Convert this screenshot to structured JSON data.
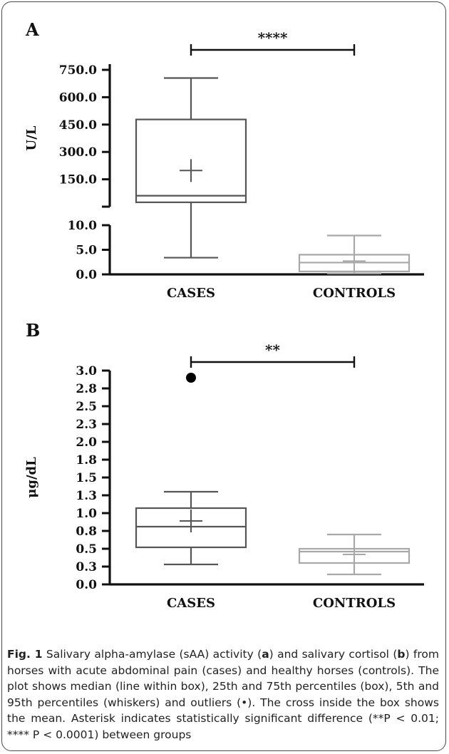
{
  "chart_data": [
    {
      "type": "box",
      "panel_label": "A",
      "ylabel": "U/L",
      "categories": [
        "CASES",
        "CONTROLS"
      ],
      "colors": [
        "#555555",
        "#a8a8a8"
      ],
      "y_axis_broken": true,
      "lower_segment": {
        "ylim": [
          0,
          10
        ],
        "ticks": [
          "0.0",
          "5.0",
          "10.0"
        ]
      },
      "upper_segment": {
        "ylim": [
          0,
          750
        ],
        "ticks": [
          "150.0",
          "300.0",
          "450.0",
          "600.0",
          "750.0"
        ]
      },
      "boxes": [
        {
          "name": "CASES",
          "p5": 3.4,
          "q1": 24,
          "median": 60,
          "mean": 198,
          "q3": 478,
          "p95": 705,
          "outliers": []
        },
        {
          "name": "CONTROLS",
          "p5": 0.2,
          "q1": 0.6,
          "median": 2.4,
          "mean": 2.7,
          "q3": 4.0,
          "p95": 7.9,
          "outliers": []
        }
      ],
      "significance": {
        "text": "****",
        "between": [
          "CASES",
          "CONTROLS"
        ]
      },
      "grid": false
    },
    {
      "type": "box",
      "panel_label": "B",
      "ylabel": "μg/dL",
      "categories": [
        "CASES",
        "CONTROLS"
      ],
      "colors": [
        "#555555",
        "#a8a8a8"
      ],
      "ylim": [
        0,
        3.0
      ],
      "ticks": [
        {
          "v": 0.0,
          "t": "0.0"
        },
        {
          "v": 0.25,
          "t": "0.3"
        },
        {
          "v": 0.5,
          "t": "0.5"
        },
        {
          "v": 0.75,
          "t": "0.8"
        },
        {
          "v": 1.0,
          "t": "1.0"
        },
        {
          "v": 1.25,
          "t": "1.3"
        },
        {
          "v": 1.5,
          "t": "1.5"
        },
        {
          "v": 1.75,
          "t": "1.8"
        },
        {
          "v": 2.0,
          "t": "2.0"
        },
        {
          "v": 2.25,
          "t": "2.3"
        },
        {
          "v": 2.5,
          "t": "2.5"
        },
        {
          "v": 2.75,
          "t": "2.8"
        },
        {
          "v": 3.0,
          "t": "3.0"
        }
      ],
      "boxes": [
        {
          "name": "CASES",
          "p5": 0.28,
          "q1": 0.52,
          "median": 0.81,
          "mean": 0.89,
          "q3": 1.07,
          "p95": 1.3,
          "outliers": [
            2.9
          ]
        },
        {
          "name": "CONTROLS",
          "p5": 0.14,
          "q1": 0.3,
          "median": 0.46,
          "mean": 0.42,
          "q3": 0.5,
          "p95": 0.7,
          "outliers": []
        }
      ],
      "significance": {
        "text": "**",
        "between": [
          "CASES",
          "CONTROLS"
        ]
      },
      "grid": false
    }
  ],
  "caption": {
    "fig_label": "Fig. 1",
    "segments": [
      {
        "t": " Salivary alpha-amylase (sAA) activity ("
      },
      {
        "t": "a",
        "b": true
      },
      {
        "t": ") and salivary cortisol ("
      },
      {
        "t": "b",
        "b": true
      },
      {
        "t": ") from horses with acute abdominal pain (cases) and healthy horses (controls). The plot shows median (line within box), 25th and 75th percentiles (box), 5th and 95th percentiles (whiskers) and outliers (•). The cross inside the box shows the mean. Asterisk indicates statistically significant difference (**P < 0.01; **** P < 0.0001) between groups"
      }
    ]
  }
}
